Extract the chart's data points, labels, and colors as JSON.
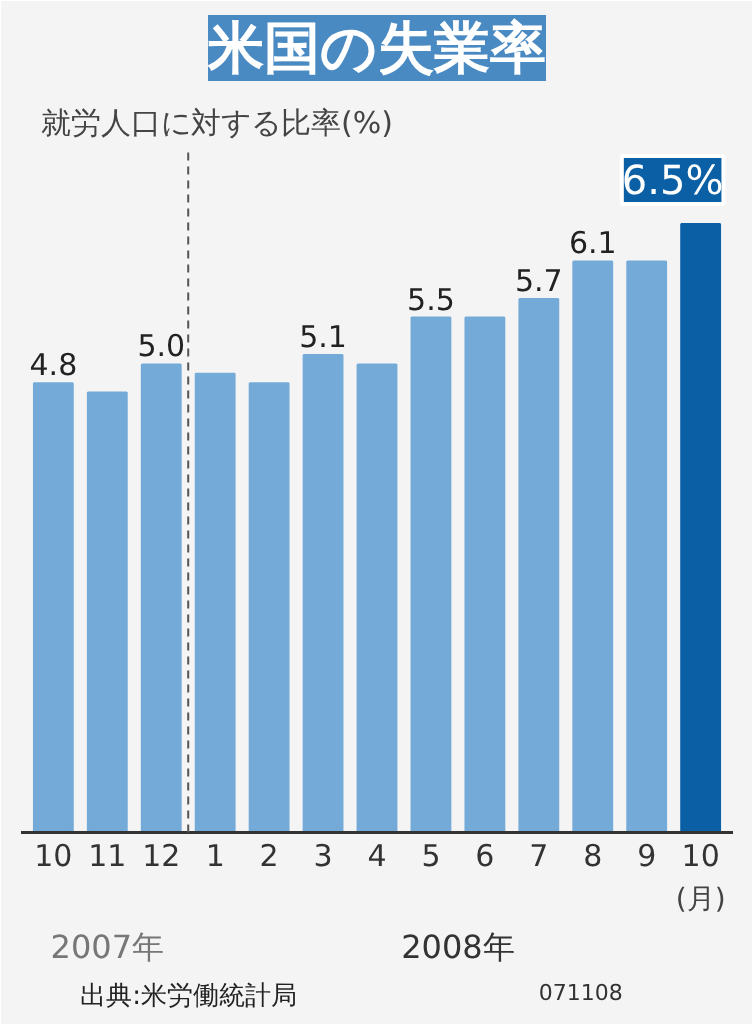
{
  "chart_data": {
    "type": "bar",
    "title": "米国の失業率",
    "subtitle": "就労人口に対する比率(%)",
    "xlabel": "(月)",
    "categories": [
      "10",
      "11",
      "12",
      "1",
      "2",
      "3",
      "4",
      "5",
      "6",
      "7",
      "8",
      "9",
      "10"
    ],
    "values": [
      4.8,
      4.7,
      5.0,
      4.9,
      4.8,
      5.1,
      5.0,
      5.5,
      5.5,
      5.7,
      6.1,
      6.1,
      6.5
    ],
    "value_labels": [
      "4.8",
      null,
      "5.0",
      null,
      null,
      "5.1",
      null,
      "5.5",
      null,
      "5.7",
      "6.1",
      null,
      "6.5%"
    ],
    "colors": [
      "#74aad8",
      "#74aad8",
      "#74aad8",
      "#74aad8",
      "#74aad8",
      "#74aad8",
      "#74aad8",
      "#74aad8",
      "#74aad8",
      "#74aad8",
      "#74aad8",
      "#74aad8",
      "#0b5fa5"
    ],
    "annotations": [
      "2007年",
      "2008年",
      "出典:米労働統計局",
      "071108"
    ],
    "grid": false
  }
}
